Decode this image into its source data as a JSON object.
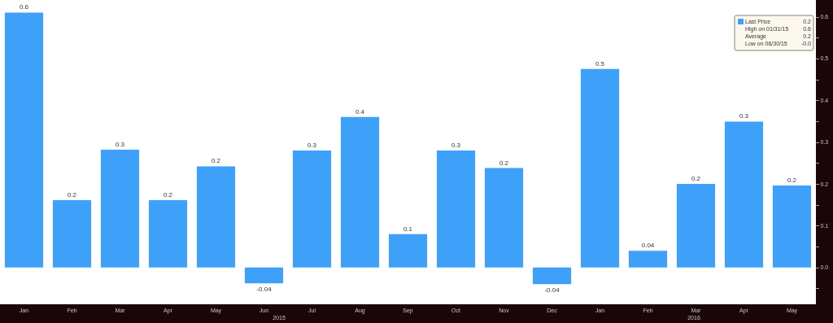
{
  "chart_data": {
    "type": "bar",
    "categories": [
      "Jan",
      "Feb",
      "Mar",
      "Apr",
      "May",
      "Jun",
      "Jul",
      "Aug",
      "Sep",
      "Oct",
      "Nov",
      "Dec",
      "Jan",
      "Feb",
      "Mar",
      "Apr",
      "May"
    ],
    "series": [
      {
        "name": "Last Price",
        "color": "#3fa0f9",
        "values": [
          0.61,
          0.161,
          0.282,
          0.161,
          0.242,
          -0.038,
          0.28,
          0.36,
          0.08,
          0.28,
          0.238,
          -0.04,
          0.475,
          0.04,
          0.2,
          0.349,
          0.196
        ],
        "value_labels": [
          "0.6",
          "0.2",
          "0.3",
          "0.2",
          "0.2",
          "-0.04",
          "0.3",
          "0.4",
          "0.1",
          "0.3",
          "0.2",
          "-0.04",
          "0.5",
          "0.04",
          "0.2",
          "0.3",
          "0.2"
        ]
      }
    ],
    "ylim": [
      -0.088,
      0.64
    ],
    "yticks": [
      {
        "value": -0.05,
        "label": null
      },
      {
        "value": 0,
        "label": "0.0"
      },
      {
        "value": 0.05,
        "label": null
      },
      {
        "value": 0.1,
        "label": "0.1"
      },
      {
        "value": 0.15,
        "label": null
      },
      {
        "value": 0.2,
        "label": "0.2"
      },
      {
        "value": 0.25,
        "label": null
      },
      {
        "value": 0.3,
        "label": "0.3"
      },
      {
        "value": 0.35,
        "label": null
      },
      {
        "value": 0.4,
        "label": "0.4"
      },
      {
        "value": 0.45,
        "label": null
      },
      {
        "value": 0.5,
        "label": "0.5"
      },
      {
        "value": 0.55,
        "label": null
      },
      {
        "value": 0.6,
        "label": "0.6"
      }
    ],
    "annotations": [
      "0.2",
      "High on 01/31/15",
      "0.6",
      "Average",
      "0.2",
      "Low on 06/30/15",
      "-0.0",
      "2015",
      "2016"
    ],
    "legend": "top right",
    "grid": false
  }
}
